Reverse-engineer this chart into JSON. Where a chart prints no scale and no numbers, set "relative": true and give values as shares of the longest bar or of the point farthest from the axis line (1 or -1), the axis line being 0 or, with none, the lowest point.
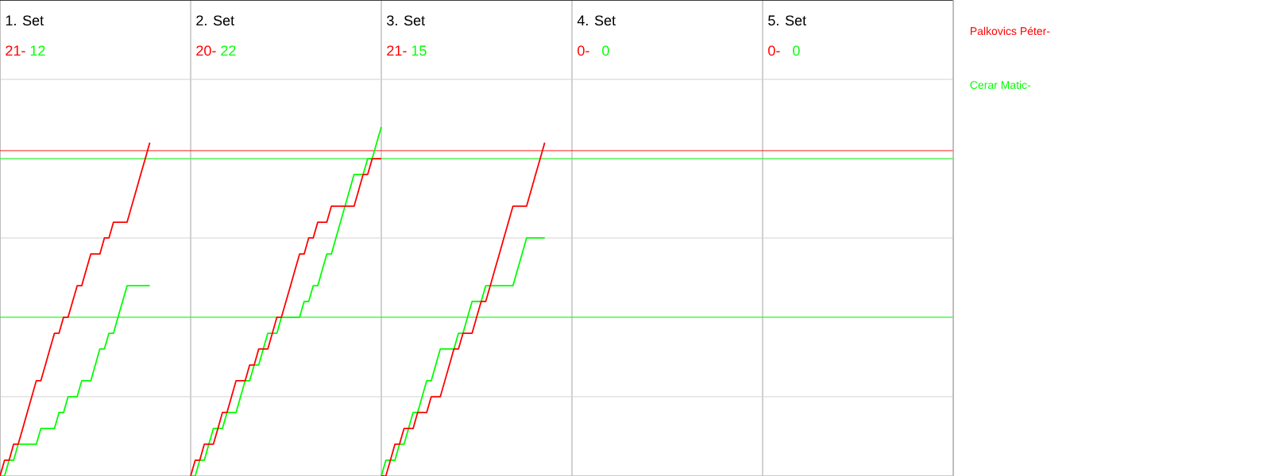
{
  "chart_data": {
    "type": "line",
    "relative": true,
    "grid": true,
    "annotations": [
      "1. Set",
      "21-",
      "12",
      "2. Set",
      "20-",
      "22",
      "3. Set",
      "21-",
      "15",
      "4. Set",
      "0-",
      "0",
      "5. Set",
      "0-",
      "0"
    ],
    "categories": [
      null,
      null,
      null,
      null,
      null,
      null,
      null,
      null,
      null,
      null,
      null,
      null,
      null,
      null,
      null,
      null,
      null,
      null,
      null,
      null,
      null,
      null,
      null,
      null,
      null,
      null,
      null,
      null,
      null,
      null,
      null,
      null,
      null,
      null,
      null,
      null,
      null,
      null,
      null,
      null,
      null,
      null,
      null,
      null,
      null,
      null,
      null,
      null,
      null,
      null,
      null,
      null,
      null,
      null,
      null,
      null,
      null,
      null,
      null,
      null,
      null,
      null,
      null,
      null,
      null,
      null,
      null,
      null,
      null,
      null,
      null,
      null,
      null,
      null,
      null,
      null,
      null,
      null,
      null,
      null,
      null,
      null,
      null,
      null,
      null,
      null,
      null,
      null,
      null,
      null,
      null,
      null,
      null,
      null,
      null,
      null,
      null,
      null,
      null,
      null,
      null,
      null,
      null,
      null,
      null,
      null,
      null,
      null,
      null,
      null,
      null,
      null,
      null,
      null,
      null,
      null,
      null,
      null,
      null,
      null,
      null,
      null,
      null,
      null,
      null,
      null,
      null,
      null,
      null,
      null,
      null,
      null,
      null,
      null,
      null,
      null,
      null,
      null,
      null,
      null,
      null,
      null,
      null,
      null,
      null,
      null,
      null,
      null,
      null,
      null,
      null,
      null,
      null,
      null,
      null,
      null,
      null,
      null,
      null,
      null,
      null,
      null,
      null,
      null,
      null,
      null,
      null,
      null,
      null,
      null,
      null,
      null,
      null,
      null,
      null,
      null,
      null,
      null,
      null,
      null,
      null,
      null,
      null,
      null,
      null,
      null,
      null,
      null,
      null,
      null,
      null,
      null,
      null,
      null,
      null,
      null,
      null,
      null,
      null,
      null,
      null,
      null,
      null,
      null,
      null,
      null,
      null,
      null,
      null,
      null,
      null
    ],
    "ref_lines": [
      {
        "axis": "y",
        "value": 0.932,
        "color": "#ff0000"
      },
      {
        "axis": "y",
        "value": 0.909,
        "color": "#00ff00"
      },
      {
        "axis": "y",
        "value": 0.455,
        "color": "#00ff00"
      }
    ],
    "series": [
      {
        "name": "Palkovics Péter-",
        "color": "#ff0000",
        "values": [
          0,
          0.045,
          0.045,
          0.091,
          0.091,
          0.136,
          0.182,
          0.227,
          0.273,
          0.273,
          0.318,
          0.364,
          0.409,
          0.409,
          0.455,
          0.455,
          0.5,
          0.545,
          0.545,
          0.591,
          0.636,
          0.636,
          0.636,
          0.682,
          0.682,
          0.727,
          0.727,
          0.727,
          0.727,
          0.773,
          0.818,
          0.864,
          0.909,
          0.955,
          null,
          null,
          null,
          null,
          null,
          null,
          null,
          null,
          null,
          null,
          null,
          null,
          null,
          null,
          null,
          null,
          null,
          null,
          null,
          null,
          null,
          null,
          null,
          null,
          null,
          null,
          null,
          null,
          null,
          null,
          null,
          null,
          null,
          null,
          null,
          null,
          null,
          null,
          null,
          null,
          null,
          null,
          null,
          null,
          null,
          null,
          null,
          null,
          null,
          null,
          null,
          null,
          null,
          null,
          null,
          null,
          null,
          null,
          null,
          null,
          null,
          null,
          null,
          null,
          null,
          null,
          null,
          null,
          null,
          null,
          null,
          null,
          null,
          null,
          null,
          null,
          null,
          null,
          null,
          null,
          null,
          null,
          null,
          null,
          null,
          null,
          null,
          null,
          null,
          null,
          null,
          null,
          null,
          null,
          null,
          null,
          null,
          null,
          null,
          null,
          null,
          null,
          null,
          null,
          null,
          null,
          null,
          null,
          null,
          null,
          null,
          null,
          null,
          null,
          null,
          null,
          null,
          null,
          null,
          null,
          null,
          null,
          null,
          null,
          null,
          null,
          null,
          null,
          null,
          null,
          null,
          null,
          null,
          null,
          null,
          null,
          null,
          null,
          null,
          null,
          null,
          null,
          null,
          null,
          null,
          null,
          null,
          null,
          null,
          null,
          null,
          null,
          null,
          null,
          null,
          null,
          null,
          null,
          null,
          null,
          null,
          null,
          null,
          null,
          null,
          null,
          null,
          null,
          null,
          null,
          null,
          null,
          null,
          null,
          null,
          null,
          null
        ]
      },
      {
        "name": "Cerar Matic-",
        "color": "#00ff00",
        "values": [
          0,
          0,
          0.045,
          0.045,
          0.091,
          0.091,
          0.091,
          0.091,
          0.091,
          0.136,
          0.136,
          0.136,
          0.136,
          0.182,
          0.182,
          0.227,
          0.227,
          0.227,
          0.273,
          0.273,
          0.273,
          0.318,
          0.364,
          0.364,
          0.409,
          0.409,
          0.455,
          0.5,
          0.545,
          0.545,
          0.545,
          0.545,
          0.545,
          0.545,
          null,
          null,
          null,
          null,
          null,
          null,
          null,
          null,
          null,
          null,
          null,
          null,
          null,
          null,
          null,
          null,
          null,
          null,
          null,
          null,
          null,
          null,
          null,
          null,
          null,
          null,
          null,
          null,
          null,
          null,
          null,
          null,
          null,
          null,
          null,
          null,
          null,
          null,
          null,
          null,
          null,
          null,
          null,
          null,
          null,
          null,
          null,
          null,
          null,
          null,
          null,
          null,
          null,
          null,
          null,
          null,
          null,
          null,
          null,
          null,
          null,
          null,
          null,
          null,
          null,
          null,
          null,
          null,
          null,
          null,
          null,
          null,
          null,
          null,
          null,
          null,
          null,
          null,
          null,
          null,
          null,
          null,
          null,
          null,
          null,
          null,
          null,
          null,
          null,
          null,
          null,
          null,
          null,
          null,
          null,
          null,
          null,
          null,
          null,
          null,
          null,
          null,
          null,
          null,
          null,
          null,
          null,
          null,
          null,
          null,
          null,
          null,
          null,
          null,
          null,
          null,
          null,
          null,
          null,
          null,
          null,
          null,
          null,
          null,
          null,
          null,
          null,
          null,
          null,
          null,
          null,
          null,
          null,
          null,
          null,
          null,
          null,
          null,
          null,
          null,
          null,
          null,
          null,
          null,
          null,
          null,
          null,
          null,
          null,
          null,
          null,
          null,
          null,
          null,
          null,
          null,
          null,
          null,
          null,
          null,
          null,
          null,
          null,
          null,
          null,
          null,
          null,
          null,
          null,
          null,
          null,
          null,
          null,
          null,
          null,
          null,
          null
        ]
      },
      {
        "color": "#ff0000",
        "values": [
          null,
          null,
          null,
          null,
          null,
          null,
          null,
          null,
          null,
          null,
          null,
          null,
          null,
          null,
          null,
          null,
          null,
          null,
          null,
          null,
          null,
          null,
          null,
          null,
          null,
          null,
          null,
          null,
          null,
          null,
          null,
          null,
          null,
          null,
          null,
          null,
          null,
          null,
          null,
          null,
          null,
          null,
          0,
          0.045,
          0.045,
          0.091,
          0.091,
          0.091,
          0.136,
          0.182,
          0.182,
          0.227,
          0.273,
          0.273,
          0.273,
          0.318,
          0.318,
          0.364,
          0.364,
          0.364,
          0.409,
          0.455,
          0.455,
          0.5,
          0.545,
          0.591,
          0.636,
          0.636,
          0.682,
          0.682,
          0.727,
          0.727,
          0.727,
          0.773,
          0.773,
          0.773,
          0.773,
          0.773,
          0.773,
          0.818,
          0.864,
          0.864,
          0.909,
          0.909,
          0.909,
          null,
          null,
          null,
          null,
          null,
          null,
          null,
          null,
          null,
          null,
          null,
          null,
          null,
          null,
          null,
          null,
          null,
          null,
          null,
          null,
          null,
          null,
          null,
          null,
          null,
          null,
          null,
          null,
          null,
          null,
          null,
          null,
          null,
          null,
          null,
          null,
          null,
          null,
          null,
          null,
          null,
          null,
          null,
          null,
          null,
          null,
          null,
          null,
          null,
          null,
          null,
          null,
          null,
          null,
          null,
          null,
          null,
          null,
          null,
          null,
          null,
          null,
          null,
          null,
          null,
          null,
          null,
          null,
          null,
          null,
          null,
          null,
          null,
          null,
          null,
          null,
          null,
          null,
          null,
          null,
          null,
          null,
          null,
          null,
          null,
          null,
          null,
          null,
          null,
          null,
          null,
          null,
          null,
          null,
          null,
          null,
          null,
          null,
          null,
          null,
          null,
          null,
          null,
          null,
          null,
          null,
          null,
          null,
          null,
          null,
          null,
          null,
          null,
          null,
          null,
          null,
          null,
          null,
          null,
          null,
          null,
          null,
          null,
          null,
          null,
          null
        ]
      },
      {
        "color": "#00ff00",
        "values": [
          null,
          null,
          null,
          null,
          null,
          null,
          null,
          null,
          null,
          null,
          null,
          null,
          null,
          null,
          null,
          null,
          null,
          null,
          null,
          null,
          null,
          null,
          null,
          null,
          null,
          null,
          null,
          null,
          null,
          null,
          null,
          null,
          null,
          null,
          null,
          null,
          null,
          null,
          null,
          null,
          null,
          null,
          0,
          0,
          0.045,
          0.045,
          0.091,
          0.136,
          0.136,
          0.136,
          0.182,
          0.182,
          0.182,
          0.227,
          0.273,
          0.273,
          0.318,
          0.318,
          0.364,
          0.409,
          0.409,
          0.409,
          0.455,
          0.455,
          0.455,
          0.455,
          0.455,
          0.5,
          0.5,
          0.545,
          0.545,
          0.591,
          0.636,
          0.636,
          0.682,
          0.727,
          0.773,
          0.818,
          0.864,
          0.864,
          0.864,
          0.909,
          0.909,
          0.955,
          1,
          null,
          null,
          null,
          null,
          null,
          null,
          null,
          null,
          null,
          null,
          null,
          null,
          null,
          null,
          null,
          null,
          null,
          null,
          null,
          null,
          null,
          null,
          null,
          null,
          null,
          null,
          null,
          null,
          null,
          null,
          null,
          null,
          null,
          null,
          null,
          null,
          null,
          null,
          null,
          null,
          null,
          null,
          null,
          null,
          null,
          null,
          null,
          null,
          null,
          null,
          null,
          null,
          null,
          null,
          null,
          null,
          null,
          null,
          null,
          null,
          null,
          null,
          null,
          null,
          null,
          null,
          null,
          null,
          null,
          null,
          null,
          null,
          null,
          null,
          null,
          null,
          null,
          null,
          null,
          null,
          null,
          null,
          null,
          null,
          null,
          null,
          null,
          null,
          null,
          null,
          null,
          null,
          null,
          null,
          null,
          null,
          null,
          null,
          null,
          null,
          null,
          null,
          null,
          null,
          null,
          null,
          null,
          null,
          null,
          null,
          null,
          null,
          null,
          null,
          null,
          null,
          null,
          null,
          null,
          null,
          null,
          null,
          null,
          null,
          null,
          null
        ]
      },
      {
        "color": "#ff0000",
        "values": [
          null,
          null,
          null,
          null,
          null,
          null,
          null,
          null,
          null,
          null,
          null,
          null,
          null,
          null,
          null,
          null,
          null,
          null,
          null,
          null,
          null,
          null,
          null,
          null,
          null,
          null,
          null,
          null,
          null,
          null,
          null,
          null,
          null,
          null,
          null,
          null,
          null,
          null,
          null,
          null,
          null,
          null,
          null,
          null,
          null,
          null,
          null,
          null,
          null,
          null,
          null,
          null,
          null,
          null,
          null,
          null,
          null,
          null,
          null,
          null,
          null,
          null,
          null,
          null,
          null,
          null,
          null,
          null,
          null,
          null,
          null,
          null,
          null,
          null,
          null,
          null,
          null,
          null,
          null,
          null,
          null,
          null,
          null,
          null,
          0,
          0,
          0.045,
          0.091,
          0.091,
          0.136,
          0.136,
          0.136,
          0.182,
          0.182,
          0.182,
          0.227,
          0.227,
          0.227,
          0.273,
          0.318,
          0.364,
          0.364,
          0.409,
          0.409,
          0.409,
          0.455,
          0.5,
          0.5,
          0.545,
          0.591,
          0.636,
          0.682,
          0.727,
          0.773,
          0.773,
          0.773,
          0.773,
          0.818,
          0.864,
          0.909,
          0.955,
          null,
          null,
          null,
          null,
          null,
          null,
          null,
          null,
          null,
          null,
          null,
          null,
          null,
          null,
          null,
          null,
          null,
          null,
          null,
          null,
          null,
          null,
          null,
          null,
          null,
          null,
          null,
          null,
          null,
          null,
          null,
          null,
          null,
          null,
          null,
          null,
          null,
          null,
          null,
          null,
          null,
          null,
          null,
          null,
          null,
          null,
          null,
          null,
          null,
          null,
          null,
          null,
          null,
          null,
          null,
          null,
          null,
          null,
          null,
          null,
          null,
          null,
          null,
          null,
          null,
          null,
          null,
          null,
          null,
          null,
          null,
          null,
          null,
          null,
          null,
          null,
          null,
          null,
          null,
          null,
          null,
          null,
          null,
          null,
          null,
          null,
          null,
          null,
          null,
          null
        ]
      },
      {
        "color": "#00ff00",
        "values": [
          null,
          null,
          null,
          null,
          null,
          null,
          null,
          null,
          null,
          null,
          null,
          null,
          null,
          null,
          null,
          null,
          null,
          null,
          null,
          null,
          null,
          null,
          null,
          null,
          null,
          null,
          null,
          null,
          null,
          null,
          null,
          null,
          null,
          null,
          null,
          null,
          null,
          null,
          null,
          null,
          null,
          null,
          null,
          null,
          null,
          null,
          null,
          null,
          null,
          null,
          null,
          null,
          null,
          null,
          null,
          null,
          null,
          null,
          null,
          null,
          null,
          null,
          null,
          null,
          null,
          null,
          null,
          null,
          null,
          null,
          null,
          null,
          null,
          null,
          null,
          null,
          null,
          null,
          null,
          null,
          null,
          null,
          null,
          null,
          0,
          0.045,
          0.045,
          0.045,
          0.091,
          0.091,
          0.136,
          0.182,
          0.182,
          0.227,
          0.273,
          0.273,
          0.318,
          0.364,
          0.364,
          0.364,
          0.364,
          0.409,
          0.409,
          0.455,
          0.5,
          0.5,
          0.5,
          0.545,
          0.545,
          0.545,
          0.545,
          0.545,
          0.545,
          0.545,
          0.591,
          0.636,
          0.682,
          0.682,
          0.682,
          0.682,
          0.682,
          null,
          null,
          null,
          null,
          null,
          null,
          null,
          null,
          null,
          null,
          null,
          null,
          null,
          null,
          null,
          null,
          null,
          null,
          null,
          null,
          null,
          null,
          null,
          null,
          null,
          null,
          null,
          null,
          null,
          null,
          null,
          null,
          null,
          null,
          null,
          null,
          null,
          null,
          null,
          null,
          null,
          null,
          null,
          null,
          null,
          null,
          null,
          null,
          null,
          null,
          null,
          null,
          null,
          null,
          null,
          null,
          null,
          null,
          null,
          null,
          null,
          null,
          null,
          null,
          null,
          null,
          null,
          null,
          null,
          null,
          null,
          null,
          null,
          null,
          null,
          null,
          null,
          null,
          null,
          null,
          null,
          null,
          null,
          null,
          null,
          null,
          null,
          null,
          null,
          null
        ]
      }
    ]
  }
}
